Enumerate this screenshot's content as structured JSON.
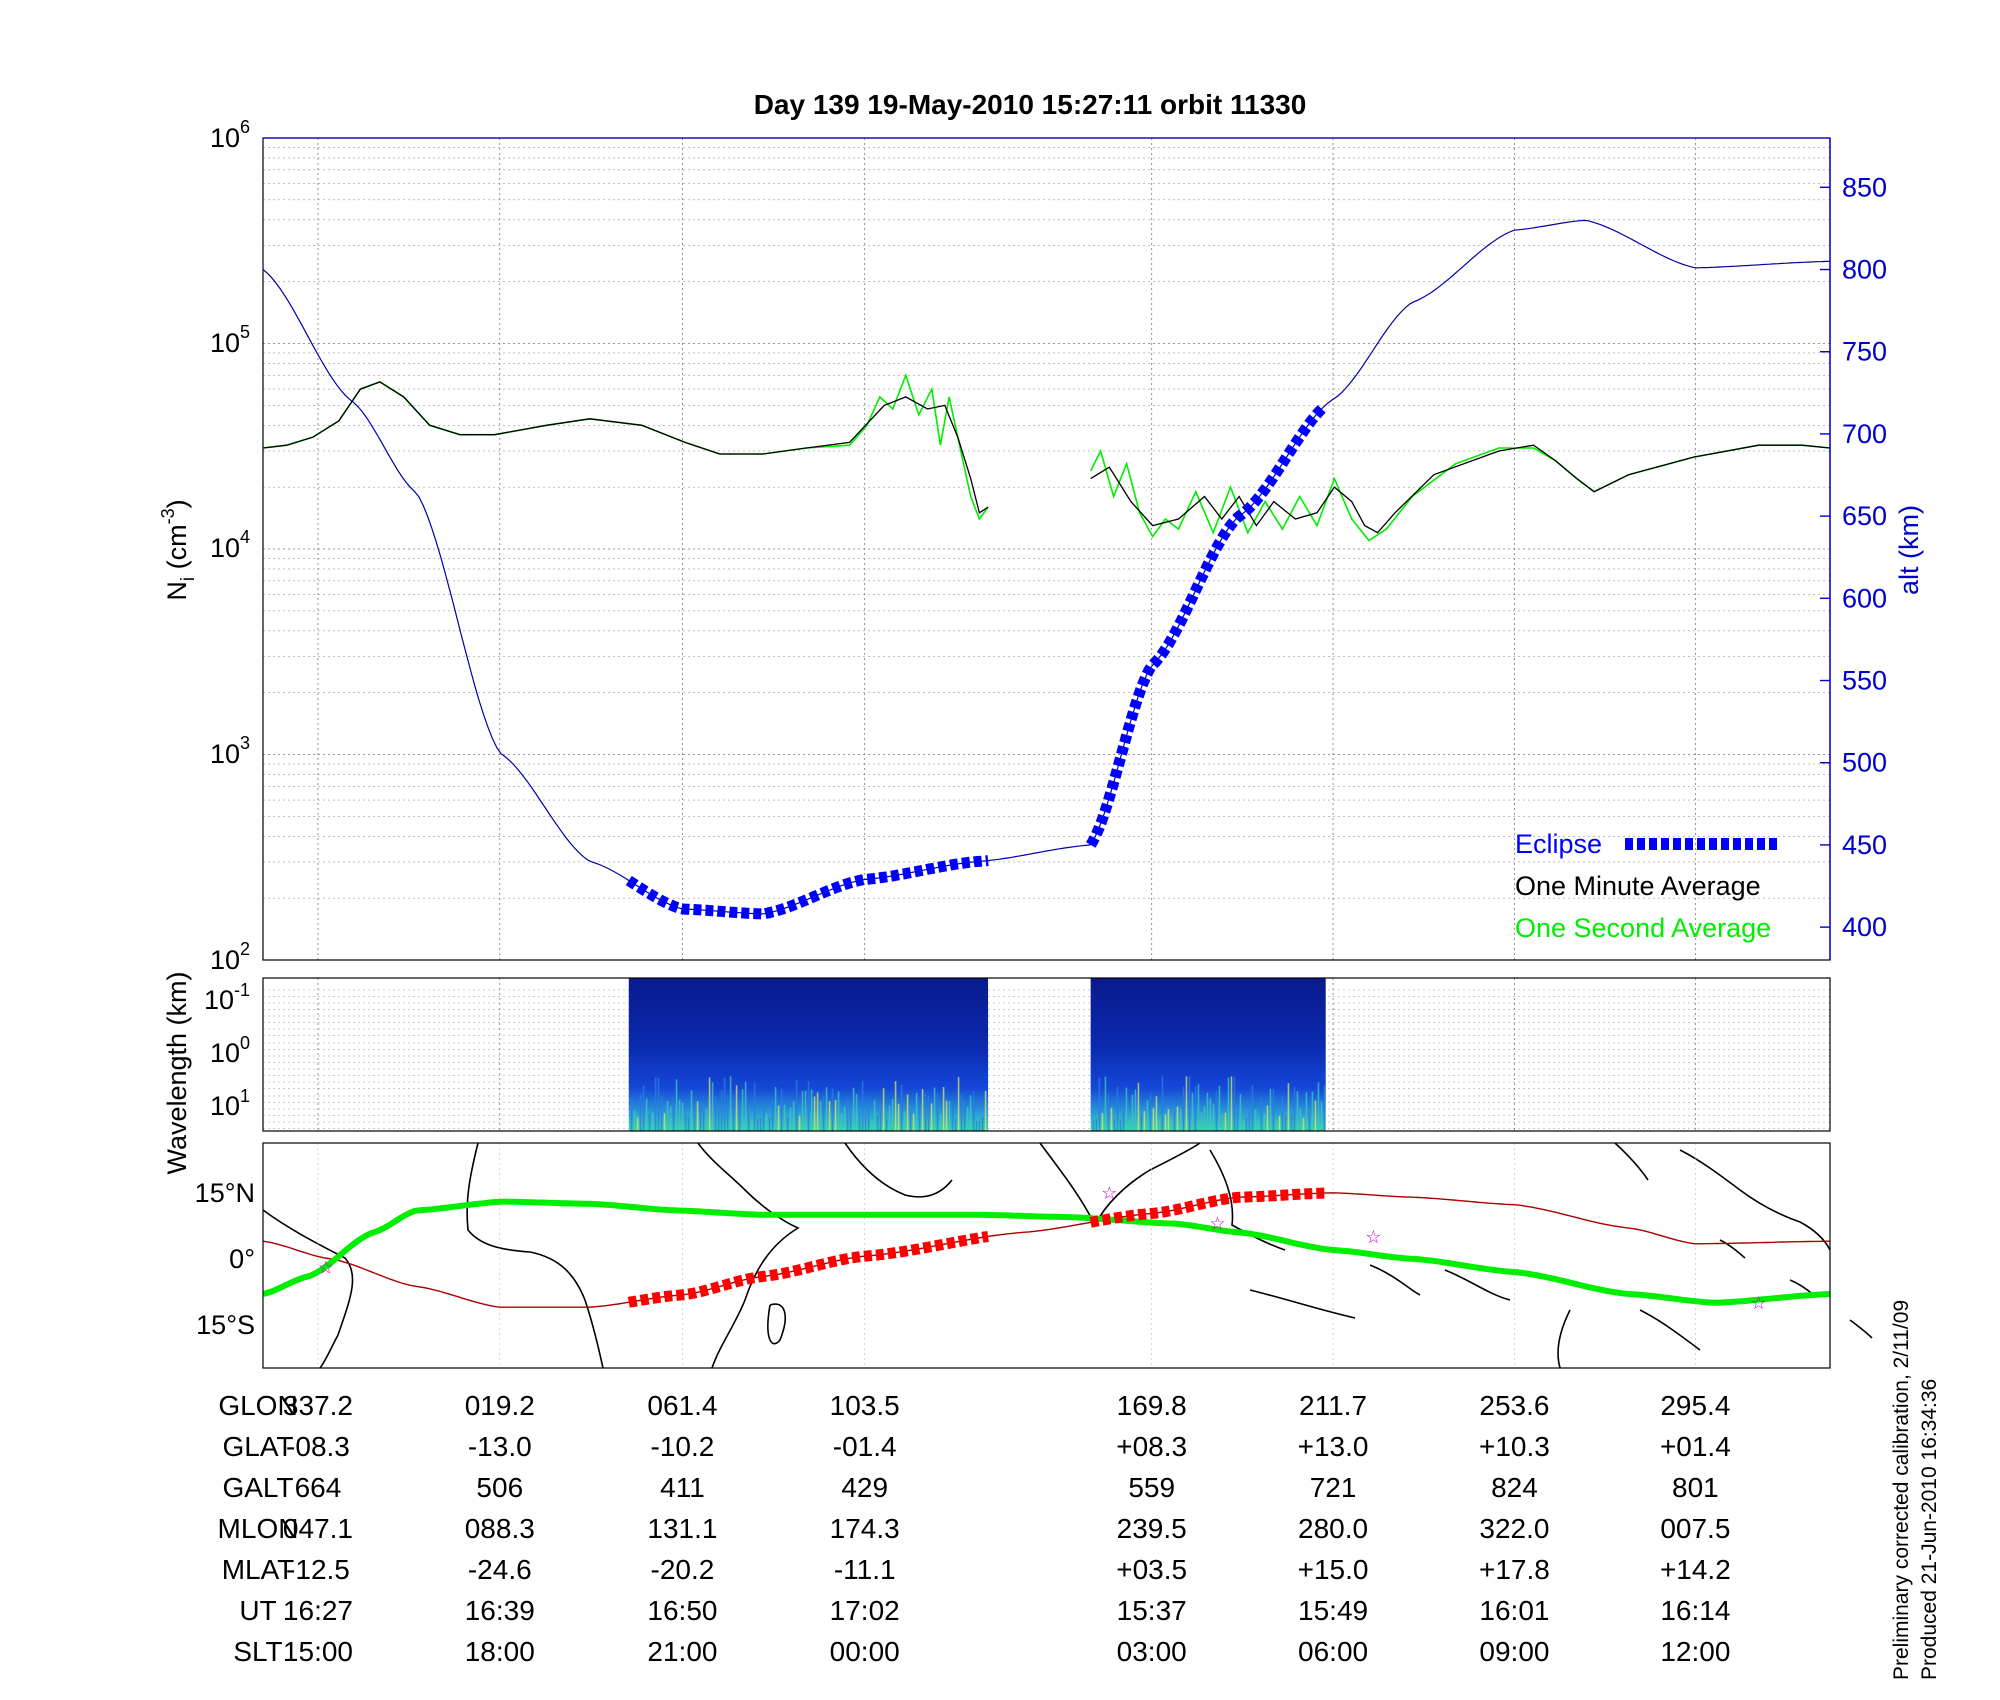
{
  "title": "Day 139  19-May-2010 15:27:11   orbit 11330",
  "panel_density": {
    "ylabel_main": "N",
    "ylabel_sub": "i",
    "ylabel_unit_open": " (cm",
    "ylabel_unit_exp": "-3",
    "ylabel_unit_close": ")",
    "right_ylabel": "alt (km)",
    "y_ticks": [
      {
        "base": "10",
        "exp": "2"
      },
      {
        "base": "10",
        "exp": "3"
      },
      {
        "base": "10",
        "exp": "4"
      },
      {
        "base": "10",
        "exp": "5"
      },
      {
        "base": "10",
        "exp": "6"
      }
    ],
    "alt_ticks": [
      "400",
      "450",
      "500",
      "550",
      "600",
      "650",
      "700",
      "750",
      "800",
      "850"
    ],
    "legend": {
      "eclipse": "Eclipse",
      "minute": "One Minute Average",
      "second": "One Second Average"
    },
    "colors": {
      "eclipse": "#0000ff",
      "minute": "#000000",
      "second": "#00ee00",
      "altitude": "#0000aa"
    }
  },
  "panel_spectrum": {
    "ylabel": "Wavelength (km)",
    "y_ticks": [
      {
        "base": "10",
        "exp": "-1"
      },
      {
        "base": "10",
        "exp": "0"
      },
      {
        "base": "10",
        "exp": "1"
      }
    ]
  },
  "panel_map": {
    "lat_ticks": [
      "15°N",
      "0°",
      "15°S"
    ],
    "colors": {
      "track": "#aa0000",
      "eclipse_track": "#ff0000",
      "magnetic_equator": "#00ee00",
      "stars": "#cc00cc"
    }
  },
  "table": {
    "row_labels": [
      "GLON",
      "GLAT",
      "GALT",
      "MLON",
      "MLAT",
      "UT",
      "SLT"
    ],
    "columns": [
      [
        "337.2",
        "-08.3",
        "664",
        "047.1",
        "-12.5",
        "16:27",
        "15:00"
      ],
      [
        "019.2",
        "-13.0",
        "506",
        "088.3",
        "-24.6",
        "16:39",
        "18:00"
      ],
      [
        "061.4",
        "-10.2",
        "411",
        "131.1",
        "-20.2",
        "16:50",
        "21:00"
      ],
      [
        "103.5",
        "-01.4",
        "429",
        "174.3",
        "-11.1",
        "17:02",
        "00:00"
      ],
      [
        "169.8",
        "+08.3",
        "559",
        "239.5",
        "+03.5",
        "15:37",
        "03:00"
      ],
      [
        "211.7",
        "+13.0",
        "721",
        "280.0",
        "+15.0",
        "15:49",
        "06:00"
      ],
      [
        "253.6",
        "+10.3",
        "824",
        "322.0",
        "+17.8",
        "16:01",
        "09:00"
      ],
      [
        "295.4",
        "+01.4",
        "801",
        "007.5",
        "+14.2",
        "16:14",
        "12:00"
      ]
    ]
  },
  "side_notes": [
    "Preliminary corrected calibration, 2/11/09",
    "Produced 21-Jun-2010 16:34:36"
  ],
  "chart_data": {
    "type": "line",
    "x_label_field": "GLON",
    "yscale": "log",
    "ylim": [
      100,
      1000000
    ],
    "y2lim": [
      380,
      880
    ],
    "grid": true,
    "legend_position": "bottom-right",
    "series": [
      {
        "name": "One Minute Average",
        "unit": "cm-3",
        "segments": [
          [
            [
              -35.5,
              31000
            ],
            [
              -30,
              32000
            ],
            [
              -24,
              35000
            ],
            [
              -18,
              42000
            ],
            [
              -13,
              60000
            ],
            [
              -8.5,
              65000
            ],
            [
              -3,
              55000
            ],
            [
              3,
              40000
            ],
            [
              10,
              36000
            ],
            [
              18,
              36000
            ],
            [
              30,
              40000
            ],
            [
              40,
              43000
            ],
            [
              52,
              40000
            ],
            [
              62,
              33000
            ],
            [
              70,
              29000
            ],
            [
              80,
              29000
            ],
            [
              90,
              31000
            ],
            [
              100,
              33000
            ],
            [
              108,
              50000
            ],
            [
              113,
              55000
            ],
            [
              118,
              48000
            ],
            [
              122,
              50000
            ],
            [
              125,
              35000
            ],
            [
              128,
              22000
            ],
            [
              130,
              15000
            ],
            [
              132,
              16000
            ]
          ],
          [
            [
              155.7,
              22000
            ],
            [
              160,
              25000
            ],
            [
              165,
              17000
            ],
            [
              170,
              13000
            ],
            [
              176,
              14000
            ],
            [
              182,
              18000
            ],
            [
              186,
              14000
            ],
            [
              190,
              18000
            ],
            [
              194,
              13000
            ],
            [
              198,
              17000
            ],
            [
              203,
              14000
            ],
            [
              208,
              15000
            ],
            [
              212,
              20000
            ],
            [
              216,
              17000
            ],
            [
              219,
              13000
            ],
            [
              222,
              12000
            ],
            [
              226,
              15000
            ],
            [
              235,
              23000
            ],
            [
              250,
              30000
            ],
            [
              258,
              32000
            ],
            [
              263,
              27000
            ],
            [
              268,
              22000
            ],
            [
              272,
              19000
            ],
            [
              280,
              23000
            ],
            [
              295,
              28000
            ],
            [
              310,
              32000
            ],
            [
              320,
              32000
            ],
            [
              326.5,
              31000
            ]
          ]
        ]
      },
      {
        "name": "One Second Average",
        "unit": "cm-3",
        "segments": [
          [
            [
              -35.5,
              31000
            ],
            [
              -30,
              32000
            ],
            [
              -24,
              35000
            ],
            [
              -18,
              42000
            ],
            [
              -13,
              60000
            ],
            [
              -8.5,
              65000
            ],
            [
              -3,
              55000
            ],
            [
              3,
              40000
            ],
            [
              10,
              36000
            ],
            [
              18,
              36000
            ],
            [
              30,
              40000
            ],
            [
              40,
              43000
            ],
            [
              52,
              40000
            ],
            [
              62,
              33000
            ],
            [
              70,
              29000
            ],
            [
              80,
              29000
            ],
            [
              90,
              31000
            ],
            [
              100,
              32000
            ],
            [
              104,
              40000
            ],
            [
              107,
              55000
            ],
            [
              110,
              48000
            ],
            [
              113,
              70000
            ],
            [
              116,
              45000
            ],
            [
              119,
              60000
            ],
            [
              121,
              32000
            ],
            [
              123,
              55000
            ],
            [
              126,
              28000
            ],
            [
              128,
              18000
            ],
            [
              130,
              14000
            ],
            [
              132,
              16000
            ]
          ],
          [
            [
              155.7,
              24000
            ],
            [
              158,
              30000
            ],
            [
              161,
              18000
            ],
            [
              164,
              26000
            ],
            [
              167,
              15000
            ],
            [
              170,
              11500
            ],
            [
              173,
              14000
            ],
            [
              176,
              12500
            ],
            [
              180,
              19000
            ],
            [
              184,
              12000
            ],
            [
              188,
              20000
            ],
            [
              192,
              12000
            ],
            [
              196,
              17000
            ],
            [
              200,
              12500
            ],
            [
              204,
              18000
            ],
            [
              208,
              13000
            ],
            [
              212,
              22000
            ],
            [
              216,
              14000
            ],
            [
              220,
              11000
            ],
            [
              224,
              12500
            ],
            [
              230,
              18000
            ],
            [
              240,
              26000
            ],
            [
              250,
              31000
            ],
            [
              258,
              31000
            ],
            [
              263,
              27000
            ],
            [
              268,
              22000
            ],
            [
              272,
              19000
            ],
            [
              280,
              23000
            ],
            [
              295,
              28000
            ],
            [
              310,
              32000
            ],
            [
              320,
              32000
            ],
            [
              326.5,
              31000
            ]
          ]
        ]
      },
      {
        "name": "alt (km)",
        "axis": "right",
        "unit": "km",
        "points": [
          [
            -35.5,
            800
          ],
          [
            -15,
            720
          ],
          [
            0,
            664
          ],
          [
            19.2,
            506
          ],
          [
            40,
            440
          ],
          [
            61.4,
            411
          ],
          [
            80,
            408
          ],
          [
            103.5,
            429
          ],
          [
            130,
            440
          ],
          [
            155.7,
            450
          ],
          [
            169.8,
            559
          ],
          [
            190,
            650
          ],
          [
            211.7,
            721
          ],
          [
            230,
            780
          ],
          [
            253.6,
            824
          ],
          [
            270,
            830
          ],
          [
            295.4,
            801
          ],
          [
            326.5,
            805
          ]
        ]
      }
    ],
    "eclipse_intervals_glon": [
      [
        49,
        132
      ],
      [
        155.7,
        210
      ]
    ],
    "ground_track": [
      [
        -35.5,
        2
      ],
      [
        -20,
        -2
      ],
      [
        0,
        -8.3
      ],
      [
        19.2,
        -13.0
      ],
      [
        40,
        -13
      ],
      [
        61.4,
        -10.2
      ],
      [
        80,
        -6
      ],
      [
        103.5,
        -1.4
      ],
      [
        140,
        4
      ],
      [
        169.8,
        8.3
      ],
      [
        190,
        12
      ],
      [
        211.7,
        13.0
      ],
      [
        230,
        12
      ],
      [
        253.6,
        10.3
      ],
      [
        280,
        5
      ],
      [
        295.4,
        1.4
      ],
      [
        326.5,
        2
      ]
    ],
    "magnetic_equator": [
      [
        -35.5,
        -10
      ],
      [
        -25,
        -6
      ],
      [
        -10,
        4
      ],
      [
        0,
        9
      ],
      [
        20,
        11
      ],
      [
        40,
        10.5
      ],
      [
        60,
        9
      ],
      [
        80,
        8
      ],
      [
        100,
        8
      ],
      [
        130,
        8
      ],
      [
        150,
        7.5
      ],
      [
        175,
        6
      ],
      [
        190,
        4
      ],
      [
        211.7,
        0
      ],
      [
        230,
        -2
      ],
      [
        253.6,
        -5
      ],
      [
        280,
        -10
      ],
      [
        300,
        -12
      ],
      [
        326.5,
        -10
      ]
    ],
    "map_markers": [
      [
        -21,
        -4
      ],
      [
        160,
        13
      ],
      [
        185,
        6
      ],
      [
        221,
        3
      ],
      [
        310,
        -12
      ]
    ]
  }
}
